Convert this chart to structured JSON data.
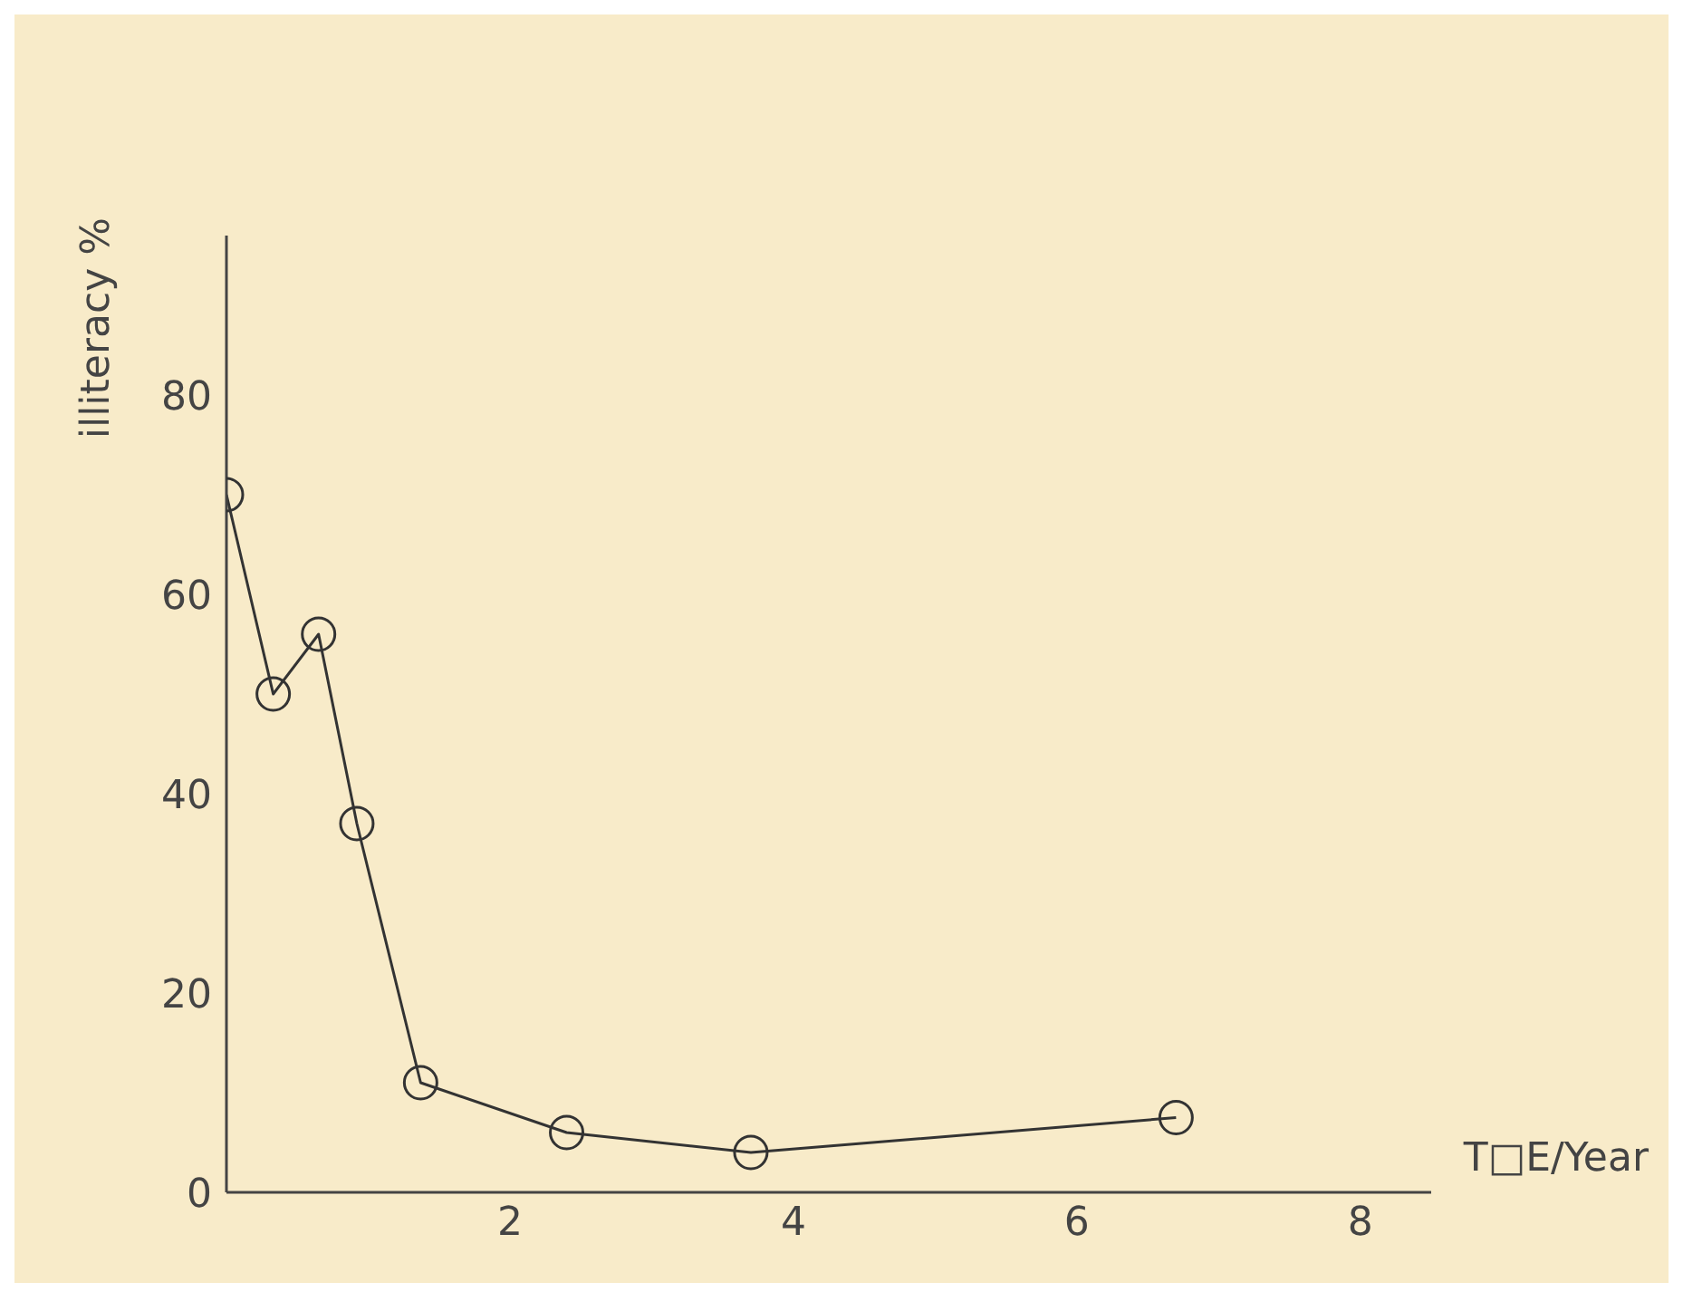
{
  "chart_data": {
    "type": "line",
    "xlabel": "T□E/Year",
    "ylabel": "illiteracy %",
    "x": [
      0,
      0.33,
      0.65,
      0.92,
      1.37,
      2.4,
      3.7,
      6.7
    ],
    "series": [
      {
        "color": "#333333",
        "values": [
          70,
          50,
          56,
          37,
          11,
          6,
          4,
          7.5
        ]
      }
    ],
    "xlim": [
      0,
      8.5
    ],
    "xticks": [
      2,
      4,
      6,
      8
    ],
    "ylim": [
      0,
      96
    ],
    "yticks": [
      0,
      20,
      40,
      60,
      80
    ],
    "grid": false,
    "legend": false,
    "marker": "circle",
    "line_style": "solid"
  }
}
